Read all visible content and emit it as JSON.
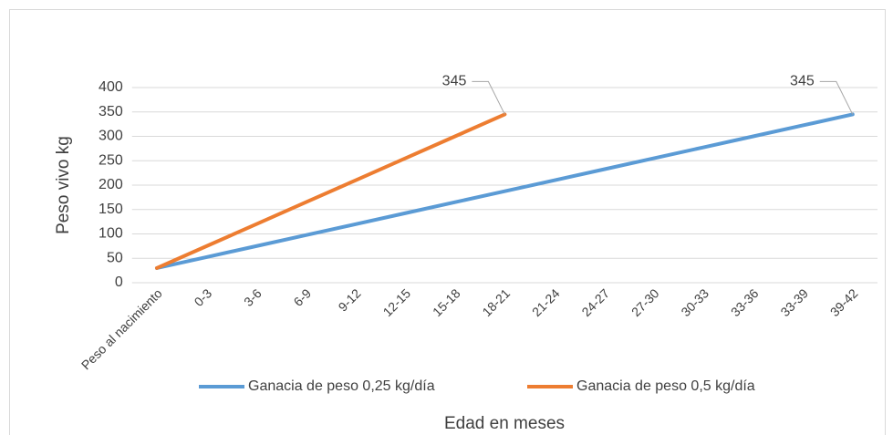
{
  "chart_data": {
    "type": "line",
    "y_axis_label": "Peso vivo kg",
    "x_axis_label": "Edad en meses",
    "categories": [
      "Peso al nacimiento",
      "0-3",
      "3-6",
      "6-9",
      "9-12",
      "12-15",
      "15-18",
      "18-21",
      "21-24",
      "24-27",
      "27-30",
      "30-33",
      "33-36",
      "33-39",
      "39-42"
    ],
    "series": [
      {
        "name": "Ganacia de peso 0,25 kg/día",
        "color": "#5b9bd5",
        "values": [
          30,
          52.5,
          75,
          97.5,
          120,
          142.5,
          165,
          187.5,
          210,
          232.5,
          255,
          277.5,
          300,
          322.5,
          345
        ]
      },
      {
        "name": "Ganacia de peso 0,5 kg/día",
        "color": "#ed7d31",
        "values": [
          30,
          75,
          120,
          165,
          210,
          255,
          300,
          345,
          null,
          null,
          null,
          null,
          null,
          null,
          null
        ]
      }
    ],
    "ylim": [
      0,
      400
    ],
    "yticks": [
      0,
      50,
      100,
      150,
      200,
      250,
      300,
      350,
      400
    ],
    "grid": true,
    "legend": "bottom"
  }
}
